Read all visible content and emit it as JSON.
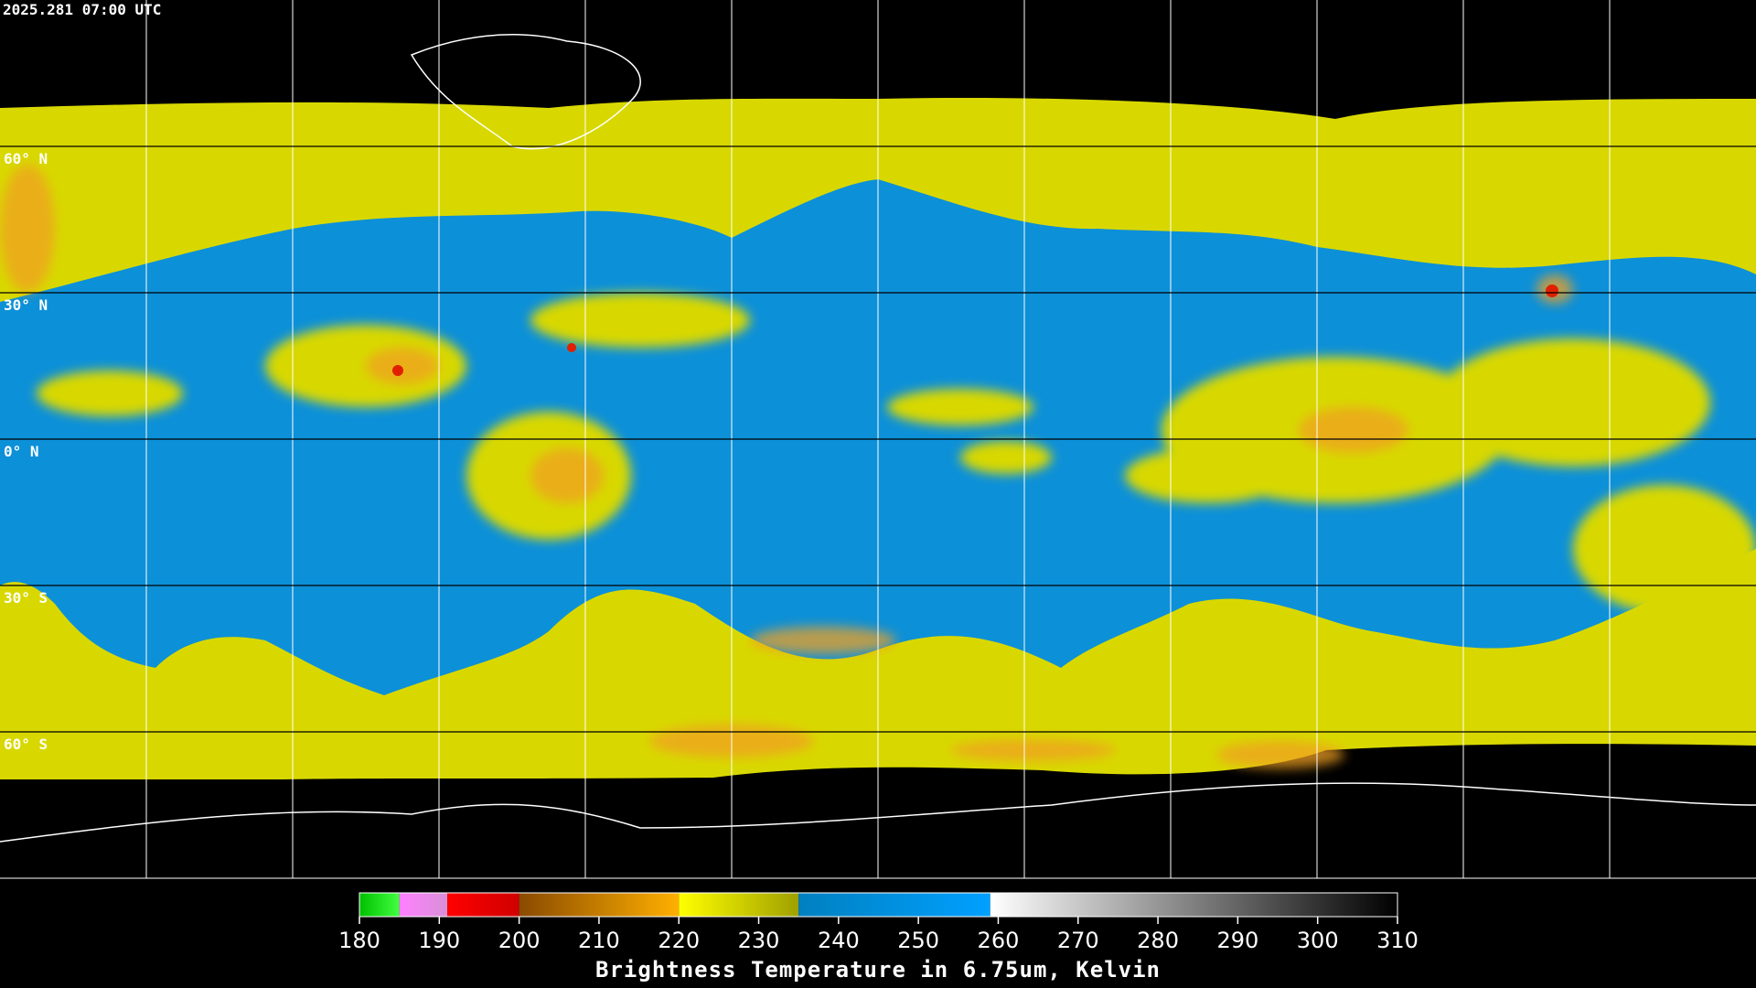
{
  "timestamp": "2025.281 07:00 UTC",
  "lat_labels": [
    "60° N",
    "30° N",
    "0° N",
    "30° S",
    "60° S"
  ],
  "colorbar": {
    "title": "Brightness Temperature in 6.75um, Kelvin",
    "lim": [
      180,
      310
    ],
    "ticks": [
      180,
      190,
      200,
      210,
      220,
      230,
      240,
      250,
      260,
      270,
      280,
      290,
      300,
      310
    ],
    "segments": [
      {
        "from": 180,
        "to": 185,
        "colors": [
          "#00c000",
          "#40ff40"
        ]
      },
      {
        "from": 185,
        "to": 191,
        "colors": [
          "#ff80ff",
          "#d890d8"
        ]
      },
      {
        "from": 191,
        "to": 200,
        "colors": [
          "#ff0000",
          "#d00000"
        ]
      },
      {
        "from": 200,
        "to": 220,
        "colors": [
          "#8a4a00",
          "#ffb000"
        ]
      },
      {
        "from": 220,
        "to": 235,
        "colors": [
          "#ffff00",
          "#a0a000"
        ]
      },
      {
        "from": 235,
        "to": 259,
        "colors": [
          "#0080c0",
          "#00a0ff"
        ]
      },
      {
        "from": 259,
        "to": 310,
        "colors": [
          "#ffffff",
          "#000000"
        ]
      }
    ]
  }
}
